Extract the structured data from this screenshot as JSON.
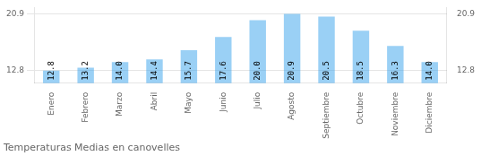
{
  "chart_data": {
    "type": "bar",
    "title": "Temperaturas Medias en canovelles",
    "categories": [
      "Enero",
      "Febrero",
      "Marzo",
      "Abril",
      "Mayo",
      "Junio",
      "Julio",
      "Agosto",
      "Septiembre",
      "Octubre",
      "Noviembre",
      "Diciembre"
    ],
    "values": [
      12.8,
      13.2,
      14.0,
      14.4,
      15.7,
      17.6,
      20.0,
      20.9,
      20.5,
      18.5,
      16.3,
      14.0
    ],
    "value_labels": [
      "12.8",
      "13.2",
      "14.0",
      "14.4",
      "15.7",
      "17.6",
      "20.0",
      "20.9",
      "20.5",
      "18.5",
      "16.3",
      "14.0"
    ],
    "data_labels": true,
    "ylim": [
      11.0,
      21.8
    ],
    "yticks": [
      12.8,
      20.9
    ],
    "y2lim": [
      11.0,
      21.8
    ],
    "y2ticks": [
      12.8,
      20.9
    ],
    "grid": true
  }
}
